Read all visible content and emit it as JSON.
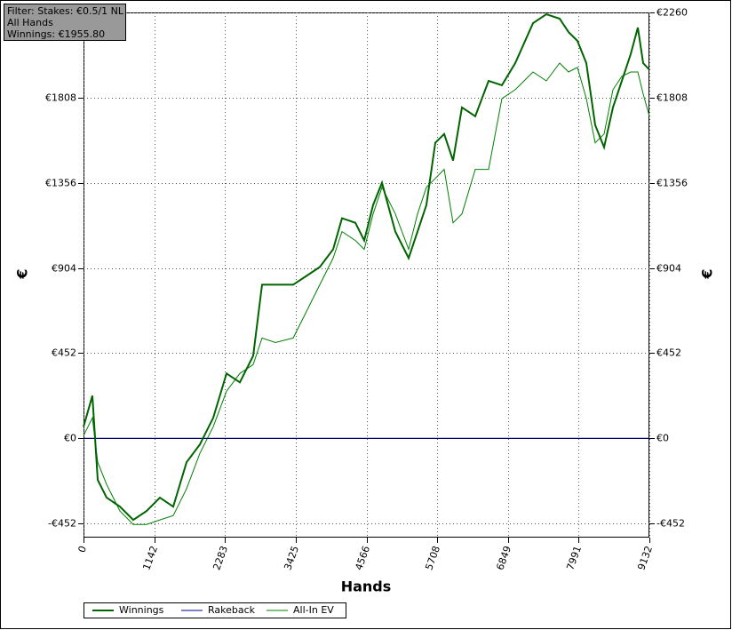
{
  "chart_data": {
    "type": "line",
    "info": [
      "Filter: Stakes: €0.5/1 NL",
      "All Hands",
      "Winnings: €1955.80"
    ],
    "xlabel": "Hands",
    "ylabel": "€",
    "y2label": "€",
    "x": [
      0,
      143,
      229,
      373,
      588,
      803,
      1018,
      1233,
      1448,
      1663,
      1878,
      2093,
      2308,
      2523,
      2738,
      2882,
      3097,
      3383,
      3598,
      3813,
      4028,
      4172,
      4387,
      4530,
      4674,
      4817,
      5032,
      5247,
      5390,
      5534,
      5677,
      5820,
      5964,
      6107,
      6322,
      6537,
      6752,
      6967,
      7254,
      7469,
      7684,
      7827,
      7971,
      8114,
      8258,
      8401,
      8544,
      8688,
      8831,
      8946,
      9032,
      9132
    ],
    "series": [
      {
        "name": "Winnings",
        "color": "#006400",
        "width": 2,
        "values": [
          61,
          226,
          -221,
          -315,
          -363,
          -433,
          -386,
          -315,
          -363,
          -127,
          -33,
          108,
          344,
          297,
          438,
          815,
          815,
          815,
          862,
          909,
          1003,
          1168,
          1144,
          1050,
          1238,
          1356,
          1097,
          956,
          1097,
          1238,
          1568,
          1615,
          1474,
          1756,
          1709,
          1897,
          1874,
          1991,
          2203,
          2250,
          2227,
          2156,
          2109,
          1991,
          1662,
          1544,
          1756,
          1897,
          2039,
          2180,
          1991,
          1956
        ]
      },
      {
        "name": "Rakeback",
        "color": "#00008b",
        "width": 1,
        "values": [
          0,
          0,
          0,
          0,
          0,
          0,
          0,
          0,
          0,
          0,
          0,
          0,
          0,
          0,
          0,
          0,
          0,
          0,
          0,
          0,
          0,
          0,
          0,
          0,
          0,
          0,
          0,
          0,
          0,
          0,
          0,
          0,
          0,
          0,
          0,
          0,
          0,
          0,
          0,
          0,
          0,
          0,
          0,
          0,
          0,
          0,
          0,
          0,
          0,
          0,
          0,
          0
        ]
      },
      {
        "name": "All-In EV",
        "color": "#008000",
        "width": 1,
        "values": [
          14,
          108,
          -127,
          -245,
          -386,
          -457,
          -457,
          -433,
          -410,
          -268,
          -80,
          61,
          250,
          344,
          391,
          532,
          508,
          532,
          673,
          815,
          956,
          1097,
          1050,
          1003,
          1191,
          1332,
          1191,
          1003,
          1191,
          1332,
          1379,
          1427,
          1144,
          1191,
          1427,
          1427,
          1803,
          1850,
          1944,
          1897,
          1991,
          1944,
          1968,
          1803,
          1568,
          1615,
          1850,
          1921,
          1944,
          1944,
          1827,
          1709
        ]
      }
    ],
    "xlim": [
      0,
      9132
    ],
    "xticks": [
      0,
      1142,
      2283,
      3425,
      4566,
      5708,
      6849,
      7991,
      9132
    ],
    "ylim": [
      -527,
      2260
    ],
    "yticks": [
      {
        "value": -452,
        "label": "-€452"
      },
      {
        "value": 0,
        "label": "€0"
      },
      {
        "value": 452,
        "label": "€452"
      },
      {
        "value": 904,
        "label": "€904"
      },
      {
        "value": 1356,
        "label": "€1356"
      },
      {
        "value": 1808,
        "label": "€1808"
      },
      {
        "value": 2260,
        "label": "€2260"
      }
    ],
    "grid": true
  }
}
